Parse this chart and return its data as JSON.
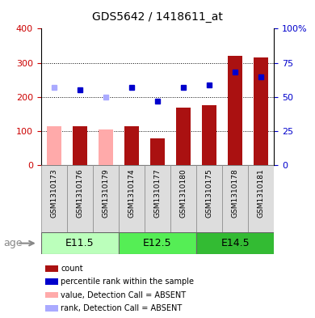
{
  "title": "GDS5642 / 1418611_at",
  "samples": [
    "GSM1310173",
    "GSM1310176",
    "GSM1310179",
    "GSM1310174",
    "GSM1310177",
    "GSM1310180",
    "GSM1310175",
    "GSM1310178",
    "GSM1310181"
  ],
  "bar_values": [
    115,
    115,
    105,
    115,
    80,
    170,
    175,
    320,
    315
  ],
  "bar_absent": [
    true,
    false,
    true,
    false,
    false,
    false,
    false,
    false,
    false
  ],
  "rank_values": [
    57,
    55,
    50,
    57,
    47,
    57,
    59,
    68,
    65
  ],
  "rank_absent": [
    true,
    false,
    true,
    false,
    false,
    false,
    false,
    false,
    false
  ],
  "ylim_left": [
    0,
    400
  ],
  "ylim_right": [
    0,
    100
  ],
  "yticks_left": [
    0,
    100,
    200,
    300,
    400
  ],
  "yticks_left_labels": [
    "0",
    "100",
    "200",
    "300",
    "400"
  ],
  "yticks_right": [
    0,
    25,
    50,
    75,
    100
  ],
  "yticks_right_labels": [
    "0",
    "25",
    "50",
    "75",
    "100%"
  ],
  "groups": [
    {
      "label": "E11.5",
      "start": 0,
      "end": 3,
      "color": "#bbffbb"
    },
    {
      "label": "E12.5",
      "start": 3,
      "end": 6,
      "color": "#55ee55"
    },
    {
      "label": "E14.5",
      "start": 6,
      "end": 9,
      "color": "#33bb33"
    }
  ],
  "bar_color_present": "#aa1111",
  "bar_color_absent": "#ffaaaa",
  "rank_color_present": "#0000cc",
  "rank_color_absent": "#aaaaff",
  "bar_width": 0.55,
  "bg_color": "#ffffff",
  "plot_bg": "#ffffff",
  "sample_box_bg": "#dddddd",
  "left_label_color": "#cc0000",
  "right_label_color": "#0000cc",
  "age_label": "age",
  "legend_items": [
    {
      "label": "count",
      "color": "#aa1111"
    },
    {
      "label": "percentile rank within the sample",
      "color": "#0000cc"
    },
    {
      "label": "value, Detection Call = ABSENT",
      "color": "#ffaaaa"
    },
    {
      "label": "rank, Detection Call = ABSENT",
      "color": "#aaaaff"
    }
  ]
}
